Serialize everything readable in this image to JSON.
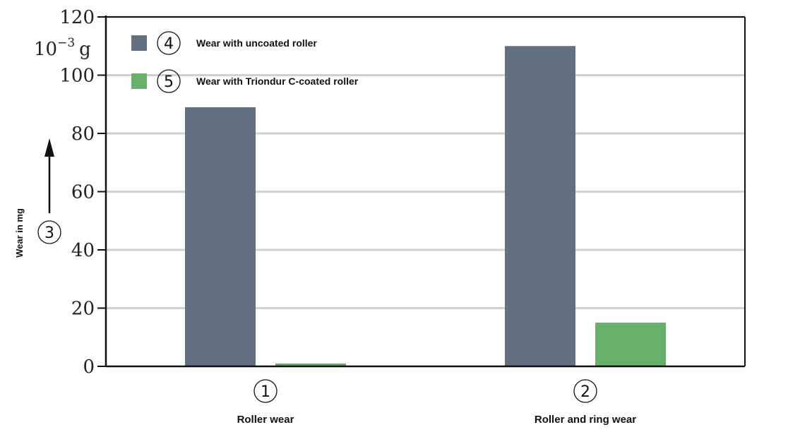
{
  "chart_data": {
    "type": "bar",
    "ylabel": "Wear in mg",
    "unit_label": "10",
    "unit_exponent": "−3",
    "unit_suffix": "g",
    "ylim": [
      0,
      120
    ],
    "yticks": [
      0,
      20,
      40,
      60,
      80,
      100,
      120
    ],
    "grid": true,
    "legend_placement": "top-left",
    "axis_marker": "3",
    "categories": [
      {
        "number": "1",
        "label": "Roller wear"
      },
      {
        "number": "2",
        "label": "Roller and ring wear"
      }
    ],
    "series": [
      {
        "marker": "4",
        "name": "Wear with uncoated roller",
        "color": "#637080",
        "values": [
          89,
          110
        ]
      },
      {
        "marker": "5",
        "name": "Wear with Triondur C-coated roller",
        "color": "#66b06a",
        "values": [
          1,
          15
        ]
      }
    ]
  }
}
